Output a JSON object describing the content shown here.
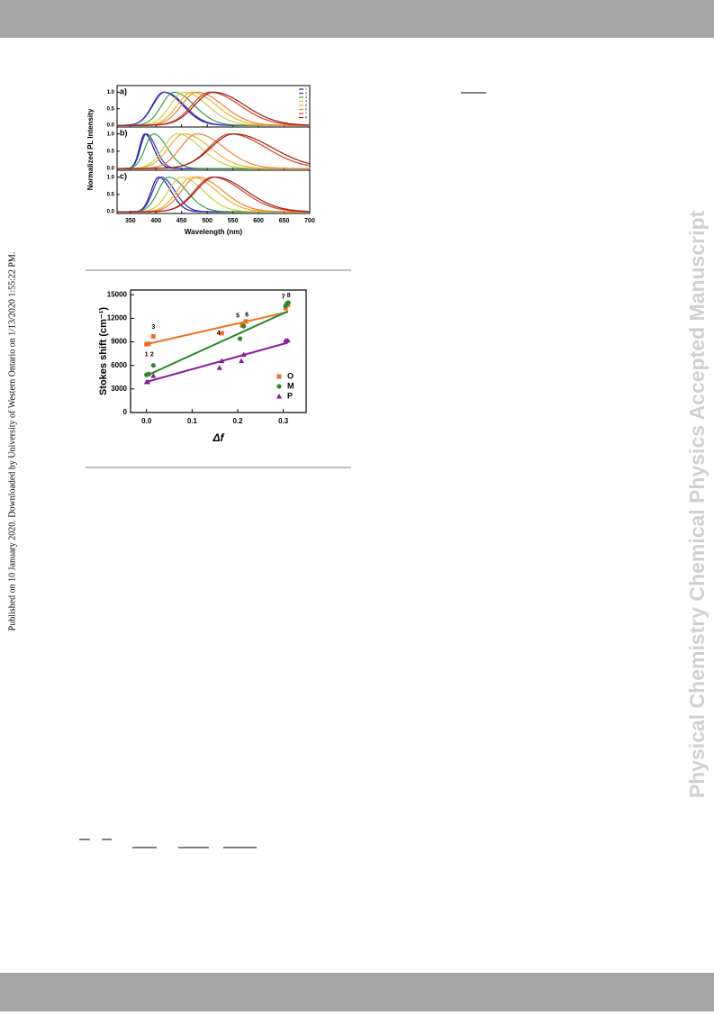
{
  "sidebar_text": "Published on 10 January 2020. Downloaded by University of Western Ontario on 1/13/2020 1:55:22 PM.",
  "watermark": "Physical Chemistry Chemical Physics Accepted Manuscript",
  "chart_data": [
    {
      "type": "spectra",
      "x_label": "Wavelength (nm)",
      "y_label": "Normalized PL Intensity",
      "xlim": [
        324,
        700
      ],
      "xticks": [
        350,
        400,
        450,
        500,
        550,
        600,
        650,
        700
      ],
      "ylim": [
        -0.05,
        1.2
      ],
      "yticks": [
        {
          "value": 0,
          "label": "0.0"
        },
        {
          "value": 0.5,
          "label": "0.5"
        },
        {
          "value": 1,
          "label": "1.0"
        }
      ],
      "legend": [
        "1",
        "2",
        "3",
        "4",
        "5",
        "6",
        "7",
        "8"
      ],
      "colors": [
        "#2a1a8a",
        "#3030d0",
        "#3aa03a",
        "#c8d040",
        "#f0b030",
        "#f08030",
        "#d04020",
        "#a01818"
      ],
      "panels": [
        {
          "label": "a)",
          "peaks": [
            415,
            417,
            435,
            455,
            470,
            480,
            505,
            512
          ],
          "fwhm": [
            70,
            72,
            75,
            85,
            90,
            95,
            110,
            115
          ]
        },
        {
          "label": "b)",
          "peaks": [
            378,
            381,
            395,
            442,
            455,
            480,
            545,
            552
          ],
          "fwhm": [
            32,
            35,
            50,
            85,
            95,
            100,
            130,
            140
          ]
        },
        {
          "label": "c)",
          "peaks": [
            405,
            410,
            425,
            450,
            470,
            480,
            510,
            515
          ],
          "fwhm": [
            45,
            50,
            65,
            80,
            90,
            95,
            110,
            115
          ]
        }
      ]
    },
    {
      "type": "scatter",
      "x_label": "Δf",
      "y_label": "Stokes shift (cm⁻¹)",
      "xlim": [
        -0.035,
        0.35
      ],
      "xticks": [
        {
          "value": 0,
          "label": "0.0"
        },
        0.1,
        0.2,
        0.3
      ],
      "ylim": [
        0,
        15600
      ],
      "yticks": [
        0,
        3000,
        6000,
        9000,
        12000,
        15000
      ],
      "legend_position": "lower right",
      "series": [
        {
          "name": "O",
          "color": "#f07020",
          "marker": "square",
          "x": [
            0,
            0.004,
            0.015,
            0.165,
            0.21,
            0.218,
            0.305,
            0.31
          ],
          "values": [
            8700,
            8750,
            9700,
            10100,
            11100,
            11600,
            13300,
            13700
          ],
          "fit_x": [
            0,
            0.31
          ],
          "fit_values": [
            8700,
            12800
          ]
        },
        {
          "name": "M",
          "color": "#2a8a2a",
          "marker": "circle",
          "x": [
            0,
            0.005,
            0.015,
            0.205,
            0.213,
            0.305,
            0.308,
            0.311
          ],
          "values": [
            4800,
            4900,
            6000,
            9400,
            11000,
            13600,
            13900,
            14000
          ],
          "fit_x": [
            0,
            0.31
          ],
          "fit_values": [
            4700,
            12900
          ]
        },
        {
          "name": "P",
          "color": "#8a1a9a",
          "marker": "triangle",
          "x": [
            0,
            0.003,
            0.015,
            0.16,
            0.165,
            0.208,
            0.213,
            0.305,
            0.31
          ],
          "values": [
            3900,
            3900,
            4700,
            5700,
            6600,
            6600,
            7400,
            9200,
            9200
          ],
          "fit_x": [
            0,
            0.31
          ],
          "fit_values": [
            3900,
            8900
          ]
        }
      ],
      "annotations": [
        {
          "text": "1",
          "x": 0,
          "y": 7400
        },
        {
          "text": "2",
          "x": 0.012,
          "y": 7400
        },
        {
          "text": "3",
          "x": 0.015,
          "y": 10900
        },
        {
          "text": "4",
          "x": 0.158,
          "y": 10100
        },
        {
          "text": "5",
          "x": 0.2,
          "y": 12300
        },
        {
          "text": "6",
          "x": 0.22,
          "y": 12400
        },
        {
          "text": "7",
          "x": 0.3,
          "y": 14700
        },
        {
          "text": "8",
          "x": 0.312,
          "y": 14900
        }
      ]
    }
  ]
}
